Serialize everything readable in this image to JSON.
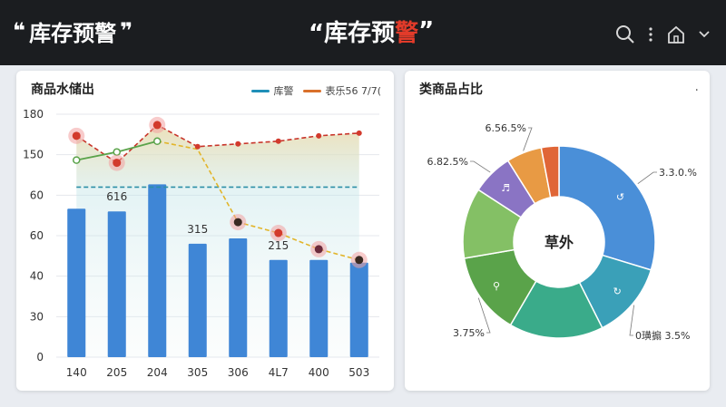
{
  "header": {
    "left_title_open": "❝",
    "left_title": "库存预警",
    "left_title_close": "❞",
    "center_title_prefix": "“库存预",
    "center_title_mark": "警",
    "center_title_suffix": "”",
    "icons": [
      "search-icon",
      "more-vertical-icon",
      "home-icon",
      "chevron-down-icon"
    ]
  },
  "left_card": {
    "title": "商品水储出",
    "legend": [
      {
        "label": "库警",
        "color": "#1f8fb8"
      },
      {
        "label": "表乐56 7/7(",
        "color": "#d9702b"
      }
    ]
  },
  "right_card": {
    "title": "类商品占比",
    "more": "·"
  },
  "colors": {
    "bar": "#3f86d6",
    "green_line": "#5aa34a",
    "red_dash": "#c8342a",
    "yellow_dash": "#e2b52a",
    "teal_dash": "#2c8fa6"
  },
  "chart_data": [
    {
      "type": "bar",
      "title": "商品水储出",
      "categories": [
        "140",
        "205",
        "204",
        "305",
        "306",
        "4L7",
        "400",
        "503"
      ],
      "y_tick_labels": [
        "0",
        "30",
        "40",
        "60",
        "60",
        "150",
        "180"
      ],
      "series": [
        {
          "name": "",
          "type": "bar",
          "values": [
            55,
            54,
            64,
            42,
            44,
            36,
            36,
            35
          ]
        },
        {
          "name": "库警",
          "type": "line",
          "values": [
            63,
            63,
            63,
            63,
            63,
            63,
            63,
            63
          ]
        },
        {
          "name": "表乐56 7/7(",
          "type": "line",
          "values": [
            82,
            72,
            86,
            78,
            79,
            80,
            82,
            83
          ]
        },
        {
          "name": "",
          "type": "line",
          "values": [
            73,
            76,
            80,
            null,
            null,
            null,
            null,
            null
          ]
        },
        {
          "name": "",
          "type": "line",
          "values": [
            null,
            null,
            80,
            77,
            50,
            46,
            40,
            36
          ]
        }
      ],
      "data_labels": [
        {
          "category": "205",
          "text": "616"
        },
        {
          "category": "305",
          "text": "315"
        },
        {
          "category": "4L7",
          "text": "215"
        }
      ],
      "grid": true
    },
    {
      "type": "pie",
      "style": "donut",
      "center_label": "草外",
      "slices": [
        {
          "value": 30,
          "label": "3.3.0.%",
          "color": "#4a8fd8",
          "icon": "↺"
        },
        {
          "value": 13,
          "label": "0璜搧 3.5%",
          "color": "#3aa0b8",
          "icon": "↻"
        },
        {
          "value": 16,
          "label": "",
          "color": "#3aab8a",
          "icon": ""
        },
        {
          "value": 14,
          "label": "3.75%",
          "color": "#5aa34a",
          "icon": "⚲"
        },
        {
          "value": 12,
          "label": "",
          "color": "#84c065",
          "icon": ""
        },
        {
          "value": 7,
          "label": "6.82.5%",
          "color": "#8a74c4",
          "icon": "♬"
        },
        {
          "value": 6,
          "label": "6.56.5%",
          "color": "#e89a44",
          "icon": ""
        },
        {
          "value": 3,
          "label": "",
          "color": "#e06637",
          "icon": ""
        }
      ]
    }
  ]
}
